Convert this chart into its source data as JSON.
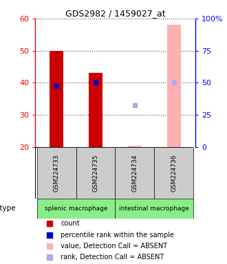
{
  "title": "GDS2982 / 1459027_at",
  "samples": [
    "GSM224733",
    "GSM224735",
    "GSM224734",
    "GSM224736"
  ],
  "cell_type_groups": [
    {
      "label": "splenic macrophage",
      "start": 0,
      "end": 2,
      "color": "#88ee88"
    },
    {
      "label": "intestinal macrophage",
      "start": 2,
      "end": 4,
      "color": "#88ee88"
    }
  ],
  "left_ylim": [
    20,
    60
  ],
  "left_yticks": [
    20,
    30,
    40,
    50,
    60
  ],
  "right_ylim": [
    0,
    100
  ],
  "right_yticks": [
    0,
    25,
    50,
    75,
    100
  ],
  "right_yticklabels": [
    "0",
    "25",
    "50",
    "75",
    "100%"
  ],
  "bars": [
    {
      "x": 0,
      "value": 50,
      "color": "#cc0000"
    },
    {
      "x": 1,
      "value": 43,
      "color": "#cc0000"
    },
    {
      "x": 2,
      "value": 20.5,
      "color": "#ffb0b0"
    },
    {
      "x": 3,
      "value": 58,
      "color": "#ffb0b0"
    }
  ],
  "dots": [
    {
      "x": 0,
      "value": 39,
      "color": "#0000cc"
    },
    {
      "x": 1,
      "value": 40,
      "color": "#0000cc"
    },
    {
      "x": 2,
      "value": 33,
      "color": "#aaaaee"
    },
    {
      "x": 3,
      "value": 40,
      "color": "#aaaaee"
    }
  ],
  "legend": [
    {
      "label": "count",
      "color": "#cc0000"
    },
    {
      "label": "percentile rank within the sample",
      "color": "#0000cc"
    },
    {
      "label": "value, Detection Call = ABSENT",
      "color": "#ffb0b0"
    },
    {
      "label": "rank, Detection Call = ABSENT",
      "color": "#aaaaee"
    }
  ],
  "bar_bottom": 20,
  "background_color": "#ffffff",
  "label_bg": "#cccccc",
  "bar_width": 0.35
}
